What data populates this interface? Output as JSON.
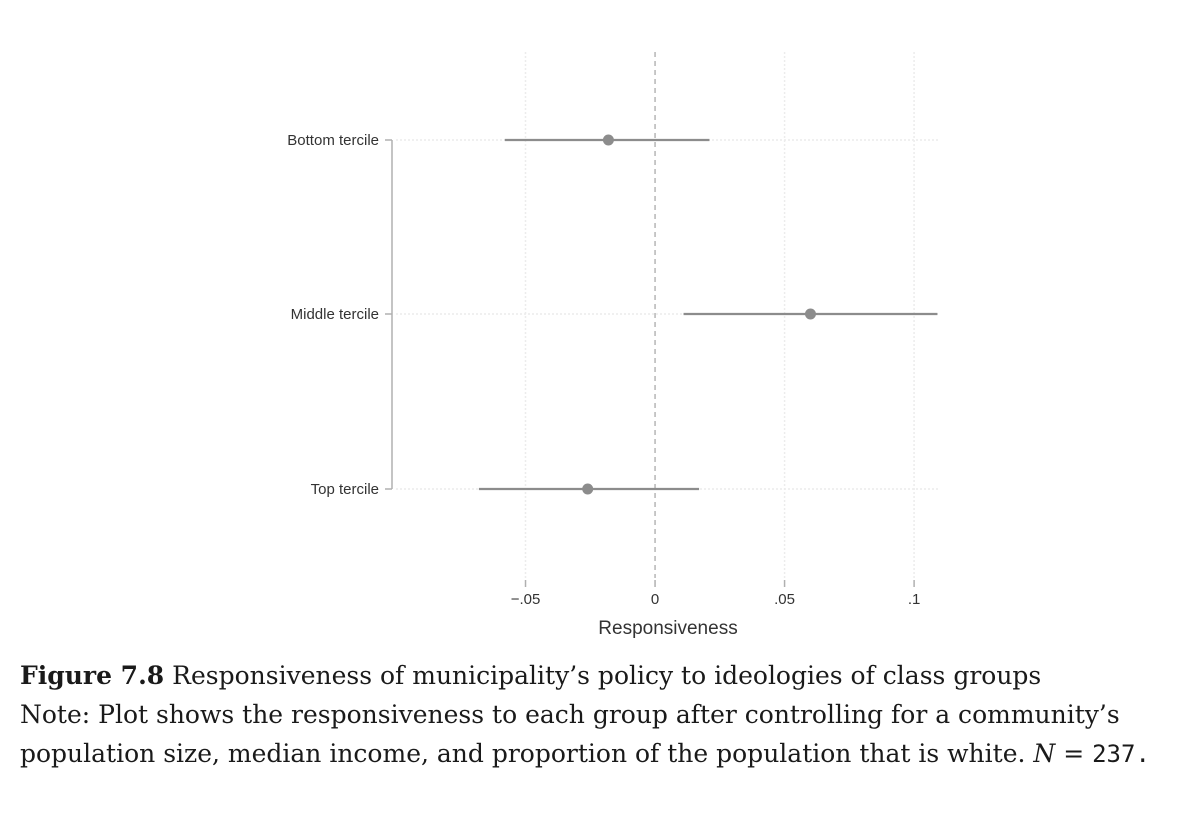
{
  "chart_data": {
    "type": "scatter",
    "subtype": "coefficient-plot-with-confidence-intervals",
    "xlabel": "Responsiveness",
    "ylabel": "",
    "xlim": [
      -0.1,
      0.11
    ],
    "x_ticks": [
      -0.05,
      0,
      0.05,
      0.1
    ],
    "x_tick_labels": [
      "−.05",
      "0",
      ".05",
      ".1"
    ],
    "reference_line": {
      "x": 0,
      "style": "dashed"
    },
    "grid": true,
    "series": [
      {
        "values": [
          {
            "label": "Bottom tercile",
            "estimate": -0.018,
            "ci_low": -0.058,
            "ci_high": 0.021
          },
          {
            "label": "Middle tercile",
            "estimate": 0.06,
            "ci_low": 0.011,
            "ci_high": 0.109
          },
          {
            "label": "Top tercile",
            "estimate": -0.026,
            "ci_low": -0.068,
            "ci_high": 0.017
          }
        ]
      }
    ],
    "colors": {
      "marker": "#8c8c8c",
      "ci_line": "#8c8c8c",
      "axis": "#b0b0b0",
      "grid": "#ececec",
      "refline": "#aaaaaa"
    }
  },
  "caption": {
    "figure_label": "Figure 7.8",
    "title": "Responsiveness of municipality’s policy to ideologies of class groups",
    "note_before_n": "Note: Plot shows the responsiveness to each group after controlling for a community’s population size, median income, and proportion of the population that is white. ",
    "n_symbol": "N",
    "n_equals": " = ",
    "n_value": "237",
    "n_suffix": "."
  }
}
